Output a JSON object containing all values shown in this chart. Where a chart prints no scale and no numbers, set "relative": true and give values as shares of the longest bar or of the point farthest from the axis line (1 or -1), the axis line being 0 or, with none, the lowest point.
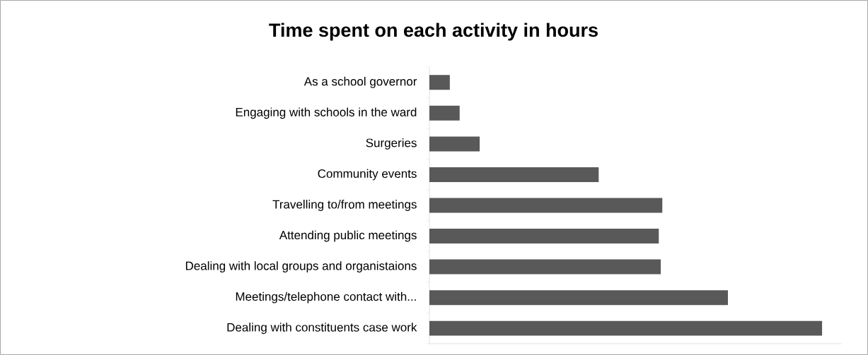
{
  "chart_data": {
    "type": "bar",
    "orientation": "horizontal",
    "relative": true,
    "title": "Time spent on each activity in hours",
    "categories": [
      "As a school governor",
      "Engaging with schools in the ward",
      "Surgeries",
      "Community events",
      "Travelling to/from meetings",
      "Attending public meetings",
      "Dealing with local groups and organistaions",
      "Meetings/telephone contact with...",
      "Dealing with constituents case work"
    ],
    "values": [
      0.052,
      0.077,
      0.128,
      0.431,
      0.593,
      0.584,
      0.589,
      0.76,
      1
    ],
    "color": "#595959",
    "grid": false
  }
}
